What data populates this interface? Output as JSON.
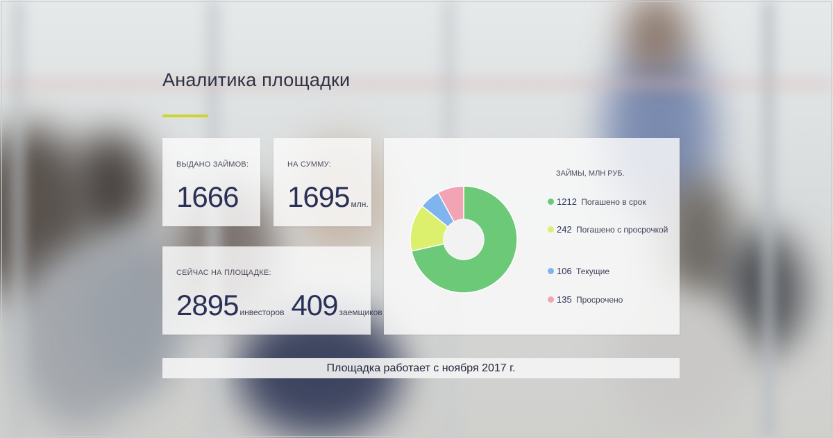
{
  "page": {
    "title": "Аналитика площадки",
    "accent_color": "#cbd52b"
  },
  "stats": {
    "issued": {
      "label": "ВЫДАНО ЗАЙМОВ:",
      "value": "1666"
    },
    "sum": {
      "label": "НА СУММУ:",
      "value": "1695",
      "unit": "млн."
    },
    "now": {
      "label": "СЕЙЧАС НА ПЛОЩАДКЕ:",
      "investors_value": "2895",
      "investors_unit": "инвесторов",
      "borrowers_value": "409",
      "borrowers_unit": "заемщиков"
    }
  },
  "chart_data": {
    "type": "pie",
    "title": "ЗАЙМЫ, МЛН РУБ.",
    "donut": true,
    "legend_position": "right",
    "slices": [
      {
        "name": "Погашено в срок",
        "value": 1212,
        "color": "#6cc977"
      },
      {
        "name": "Погашено с просрочкой",
        "value": 242,
        "color": "#dcf06e"
      },
      {
        "name": "Текущие",
        "value": 106,
        "color": "#7fb4ee"
      },
      {
        "name": "Просрочено",
        "value": 135,
        "color": "#f2a4b5"
      }
    ]
  },
  "footer": {
    "text": "Площадка работает с ноября 2017 г."
  }
}
